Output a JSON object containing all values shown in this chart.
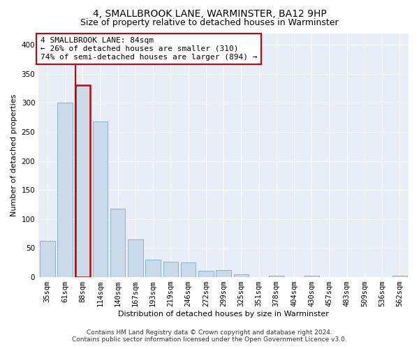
{
  "title": "4, SMALLBROOK LANE, WARMINSTER, BA12 9HP",
  "subtitle": "Size of property relative to detached houses in Warminster",
  "xlabel": "Distribution of detached houses by size in Warminster",
  "ylabel": "Number of detached properties",
  "categories": [
    "35sqm",
    "61sqm",
    "88sqm",
    "114sqm",
    "140sqm",
    "167sqm",
    "193sqm",
    "219sqm",
    "246sqm",
    "272sqm",
    "299sqm",
    "325sqm",
    "351sqm",
    "378sqm",
    "404sqm",
    "430sqm",
    "457sqm",
    "483sqm",
    "509sqm",
    "536sqm",
    "562sqm"
  ],
  "values": [
    62,
    300,
    330,
    268,
    118,
    65,
    30,
    27,
    25,
    11,
    12,
    5,
    0,
    2,
    0,
    2,
    0,
    0,
    0,
    0,
    2
  ],
  "bar_color": "#c9daea",
  "bar_edge_color": "#7aaac8",
  "highlight_bar_index": 2,
  "highlight_bar_edge_color": "#cc0000",
  "annotation_text": "4 SMALLBROOK LANE: 84sqm\n← 26% of detached houses are smaller (310)\n74% of semi-detached houses are larger (894) →",
  "annotation_box_color": "#ffffff",
  "annotation_box_edge_color": "#cc0000",
  "ylim": [
    0,
    420
  ],
  "yticks": [
    0,
    50,
    100,
    150,
    200,
    250,
    300,
    350,
    400
  ],
  "background_color": "#e8eef8",
  "grid_color": "#ffffff",
  "footer_line1": "Contains HM Land Registry data © Crown copyright and database right 2024.",
  "footer_line2": "Contains public sector information licensed under the Open Government Licence v3.0.",
  "title_fontsize": 10,
  "subtitle_fontsize": 9,
  "xlabel_fontsize": 8,
  "ylabel_fontsize": 8,
  "tick_fontsize": 7.5,
  "annotation_fontsize": 8,
  "footer_fontsize": 6.5
}
